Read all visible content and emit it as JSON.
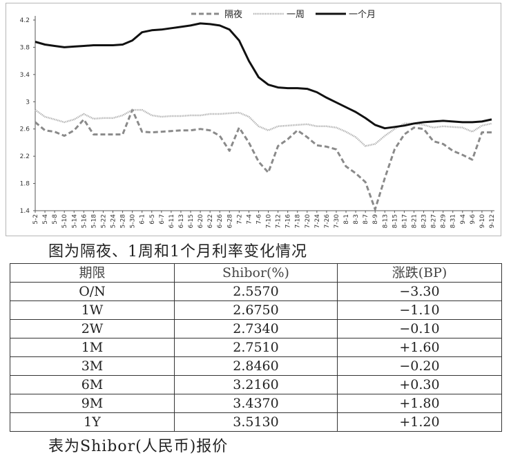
{
  "chart_data": {
    "type": "line",
    "ylim": [
      1.4,
      4.2
    ],
    "yticks": [
      "4.2",
      "3.8",
      "3.4",
      "3",
      "2.6",
      "2.2",
      "1.8",
      "1.4"
    ],
    "legend": {
      "position": "top-center"
    },
    "x": [
      "5-2",
      "5-4",
      "5-8",
      "5-10",
      "5-14",
      "5-16",
      "5-18",
      "5-22",
      "5-24",
      "5-28",
      "5-30",
      "6-1",
      "6-5",
      "6-7",
      "6-11",
      "6-13",
      "6-15",
      "6-20",
      "6-22",
      "6-26",
      "6-28",
      "7-2",
      "7-4",
      "7-6",
      "7-10",
      "7-12",
      "7-16",
      "7-18",
      "7-20",
      "7-24",
      "7-26",
      "7-30",
      "8-1",
      "8-3",
      "8-7",
      "8-9",
      "8-13",
      "8-15",
      "8-17",
      "8-21",
      "8-23",
      "8-27",
      "8-29",
      "8-31",
      "9-4",
      "9-6",
      "9-10",
      "9-12"
    ],
    "series": [
      {
        "name": "隔夜",
        "style": "dashed",
        "color": "#8a8a8a",
        "values": [
          2.7,
          2.58,
          2.56,
          2.5,
          2.58,
          2.74,
          2.52,
          2.52,
          2.52,
          2.52,
          2.88,
          2.56,
          2.55,
          2.56,
          2.57,
          2.58,
          2.58,
          2.6,
          2.58,
          2.5,
          2.28,
          2.62,
          2.4,
          2.12,
          1.96,
          2.35,
          2.45,
          2.58,
          2.48,
          2.36,
          2.34,
          2.3,
          2.05,
          1.95,
          1.82,
          1.42,
          1.88,
          2.3,
          2.52,
          2.62,
          2.6,
          2.42,
          2.38,
          2.28,
          2.22,
          2.15,
          2.55,
          2.55
        ]
      },
      {
        "name": "一周",
        "style": "dotted",
        "color": "#a8a8a8",
        "values": [
          2.88,
          2.78,
          2.74,
          2.7,
          2.74,
          2.82,
          2.75,
          2.76,
          2.76,
          2.8,
          2.88,
          2.88,
          2.8,
          2.78,
          2.79,
          2.79,
          2.8,
          2.8,
          2.82,
          2.82,
          2.83,
          2.84,
          2.78,
          2.64,
          2.58,
          2.64,
          2.65,
          2.66,
          2.67,
          2.64,
          2.64,
          2.62,
          2.56,
          2.48,
          2.35,
          2.38,
          2.5,
          2.6,
          2.68,
          2.68,
          2.66,
          2.62,
          2.64,
          2.63,
          2.62,
          2.56,
          2.65,
          2.68
        ]
      },
      {
        "name": "一个月",
        "style": "solid",
        "color": "#111111",
        "values": [
          3.88,
          3.84,
          3.82,
          3.8,
          3.81,
          3.82,
          3.83,
          3.83,
          3.83,
          3.84,
          3.9,
          4.02,
          4.05,
          4.06,
          4.08,
          4.1,
          4.12,
          4.15,
          4.14,
          4.12,
          4.06,
          3.9,
          3.6,
          3.36,
          3.25,
          3.21,
          3.2,
          3.2,
          3.19,
          3.14,
          3.06,
          2.99,
          2.92,
          2.85,
          2.76,
          2.66,
          2.61,
          2.63,
          2.65,
          2.68,
          2.7,
          2.71,
          2.72,
          2.71,
          2.7,
          2.7,
          2.71,
          2.74
        ]
      }
    ]
  },
  "captions": {
    "chart": "图为隔夜、1周和1个月利率变化情况",
    "table": "表为Shibor(人民币)报价"
  },
  "table": {
    "headers": [
      "期限",
      "Shibor(%)",
      "涨跌(BP)"
    ],
    "rows": [
      [
        "O/N",
        "2.5570",
        "−3.30"
      ],
      [
        "1W",
        "2.6750",
        "−1.10"
      ],
      [
        "2W",
        "2.7340",
        "−0.10"
      ],
      [
        "1M",
        "2.7510",
        "+1.60"
      ],
      [
        "3M",
        "2.8460",
        "−0.20"
      ],
      [
        "6M",
        "3.2160",
        "+0.30"
      ],
      [
        "9M",
        "3.4370",
        "+1.80"
      ],
      [
        "1Y",
        "3.5130",
        "+1.20"
      ]
    ]
  }
}
